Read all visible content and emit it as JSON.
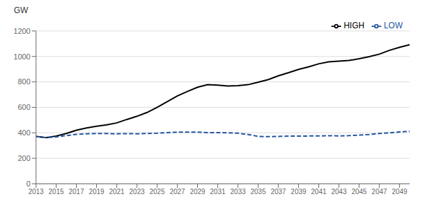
{
  "chart_data": {
    "type": "line",
    "y_label": "GW",
    "x": [
      2013,
      2014,
      2015,
      2016,
      2017,
      2018,
      2019,
      2020,
      2021,
      2022,
      2023,
      2024,
      2025,
      2026,
      2027,
      2028,
      2029,
      2030,
      2031,
      2032,
      2033,
      2034,
      2035,
      2036,
      2037,
      2038,
      2039,
      2040,
      2041,
      2042,
      2043,
      2044,
      2045,
      2046,
      2047,
      2048,
      2049,
      2050
    ],
    "series": [
      {
        "name": "HIGH",
        "color": "#000000",
        "line_style": "solid",
        "values": [
          372,
          362,
          375,
          395,
          420,
          438,
          452,
          462,
          478,
          505,
          530,
          560,
          600,
          645,
          690,
          725,
          758,
          778,
          775,
          768,
          770,
          778,
          798,
          818,
          848,
          872,
          898,
          918,
          942,
          958,
          963,
          968,
          982,
          998,
          1018,
          1048,
          1072,
          1092
        ]
      },
      {
        "name": "LOW",
        "color": "#2255a0",
        "line_style": "dashed",
        "values": [
          372,
          362,
          368,
          378,
          388,
          392,
          395,
          395,
          392,
          394,
          392,
          395,
          397,
          402,
          405,
          405,
          405,
          402,
          402,
          400,
          397,
          387,
          372,
          370,
          372,
          374,
          374,
          375,
          376,
          377,
          376,
          378,
          382,
          387,
          395,
          400,
          407,
          412
        ]
      }
    ],
    "xlim": [
      2013,
      2050
    ],
    "xticks": [
      2013,
      2015,
      2017,
      2019,
      2021,
      2023,
      2025,
      2027,
      2029,
      2031,
      2033,
      2035,
      2037,
      2039,
      2041,
      2043,
      2045,
      2047,
      2049
    ],
    "ylim": [
      0,
      1200
    ],
    "yticks": [
      0,
      200,
      400,
      600,
      800,
      1000,
      1200
    ],
    "grid": "y",
    "legend": "top right"
  }
}
